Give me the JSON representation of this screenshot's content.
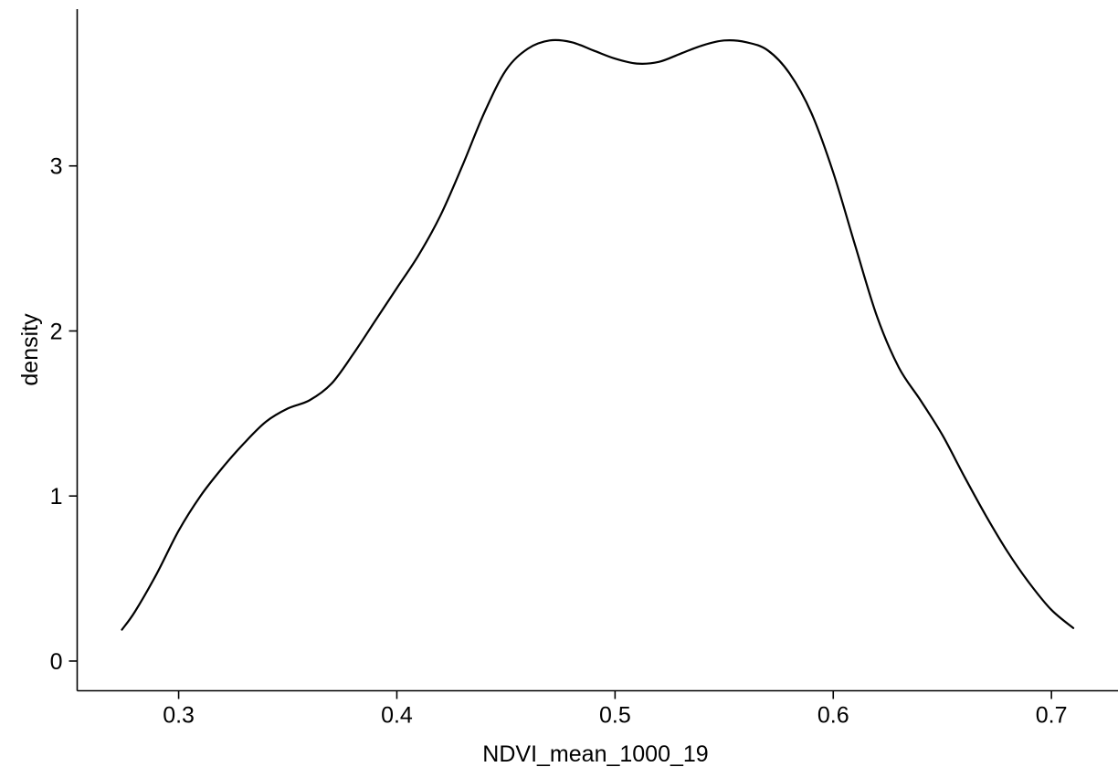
{
  "chart_data": {
    "type": "line",
    "title": "",
    "xlabel": "NDVI_mean_1000_19",
    "ylabel": "density",
    "xlim": [
      0.2535,
      0.7305
    ],
    "ylim": [
      -0.18,
      3.95
    ],
    "grid": false,
    "legend": "none",
    "x_ticks": [
      0.3,
      0.4,
      0.5,
      0.6,
      0.7
    ],
    "x_tick_labels": [
      "0.3",
      "0.4",
      "0.5",
      "0.6",
      "0.7"
    ],
    "y_ticks": [
      0,
      1,
      2,
      3
    ],
    "y_tick_labels": [
      "0",
      "1",
      "2",
      "3"
    ],
    "series": [
      {
        "color": "#000000",
        "x": [
          0.274,
          0.28,
          0.29,
          0.3,
          0.31,
          0.32,
          0.33,
          0.34,
          0.35,
          0.36,
          0.37,
          0.38,
          0.39,
          0.4,
          0.41,
          0.42,
          0.43,
          0.44,
          0.45,
          0.46,
          0.47,
          0.48,
          0.49,
          0.5,
          0.51,
          0.52,
          0.53,
          0.54,
          0.55,
          0.56,
          0.57,
          0.58,
          0.59,
          0.6,
          0.61,
          0.62,
          0.63,
          0.64,
          0.65,
          0.66,
          0.67,
          0.68,
          0.69,
          0.7,
          0.71
        ],
        "y": [
          0.19,
          0.3,
          0.53,
          0.79,
          1.0,
          1.17,
          1.32,
          1.45,
          1.53,
          1.58,
          1.68,
          1.86,
          2.06,
          2.26,
          2.46,
          2.7,
          3.0,
          3.32,
          3.58,
          3.71,
          3.76,
          3.75,
          3.7,
          3.65,
          3.62,
          3.63,
          3.68,
          3.73,
          3.76,
          3.75,
          3.7,
          3.56,
          3.32,
          2.96,
          2.52,
          2.09,
          1.78,
          1.58,
          1.37,
          1.12,
          0.88,
          0.66,
          0.47,
          0.31,
          0.2
        ]
      }
    ]
  }
}
